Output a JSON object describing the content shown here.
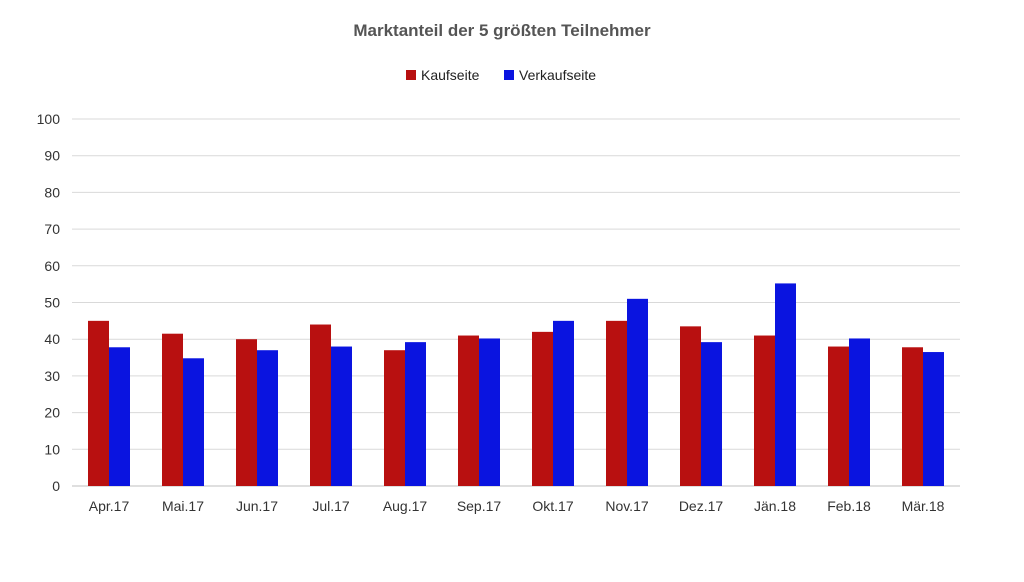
{
  "chart_data": {
    "type": "bar",
    "title": "Marktanteil der 5 größten Teilnehmer",
    "xlabel": "",
    "ylabel": "",
    "categories": [
      "Apr.17",
      "Mai.17",
      "Jun.17",
      "Jul.17",
      "Aug.17",
      "Sep.17",
      "Okt.17",
      "Nov.17",
      "Dez.17",
      "Jän.18",
      "Feb.18",
      "Mär.18"
    ],
    "series": [
      {
        "name": "Kaufseite",
        "color": "#b81010",
        "values": [
          45,
          41.5,
          40,
          44,
          37,
          41,
          42,
          45,
          43.5,
          41,
          38,
          37.8
        ]
      },
      {
        "name": "Verkaufseite",
        "color": "#0a14e0",
        "values": [
          37.8,
          34.8,
          37,
          38,
          39.2,
          40.2,
          45,
          51,
          39.2,
          55.2,
          40.2,
          36.5
        ]
      }
    ],
    "ylim": [
      0,
      100
    ],
    "yticks": [
      0,
      10,
      20,
      30,
      40,
      50,
      60,
      70,
      80,
      90,
      100
    ],
    "grid": true,
    "legend_position": "top-center"
  }
}
